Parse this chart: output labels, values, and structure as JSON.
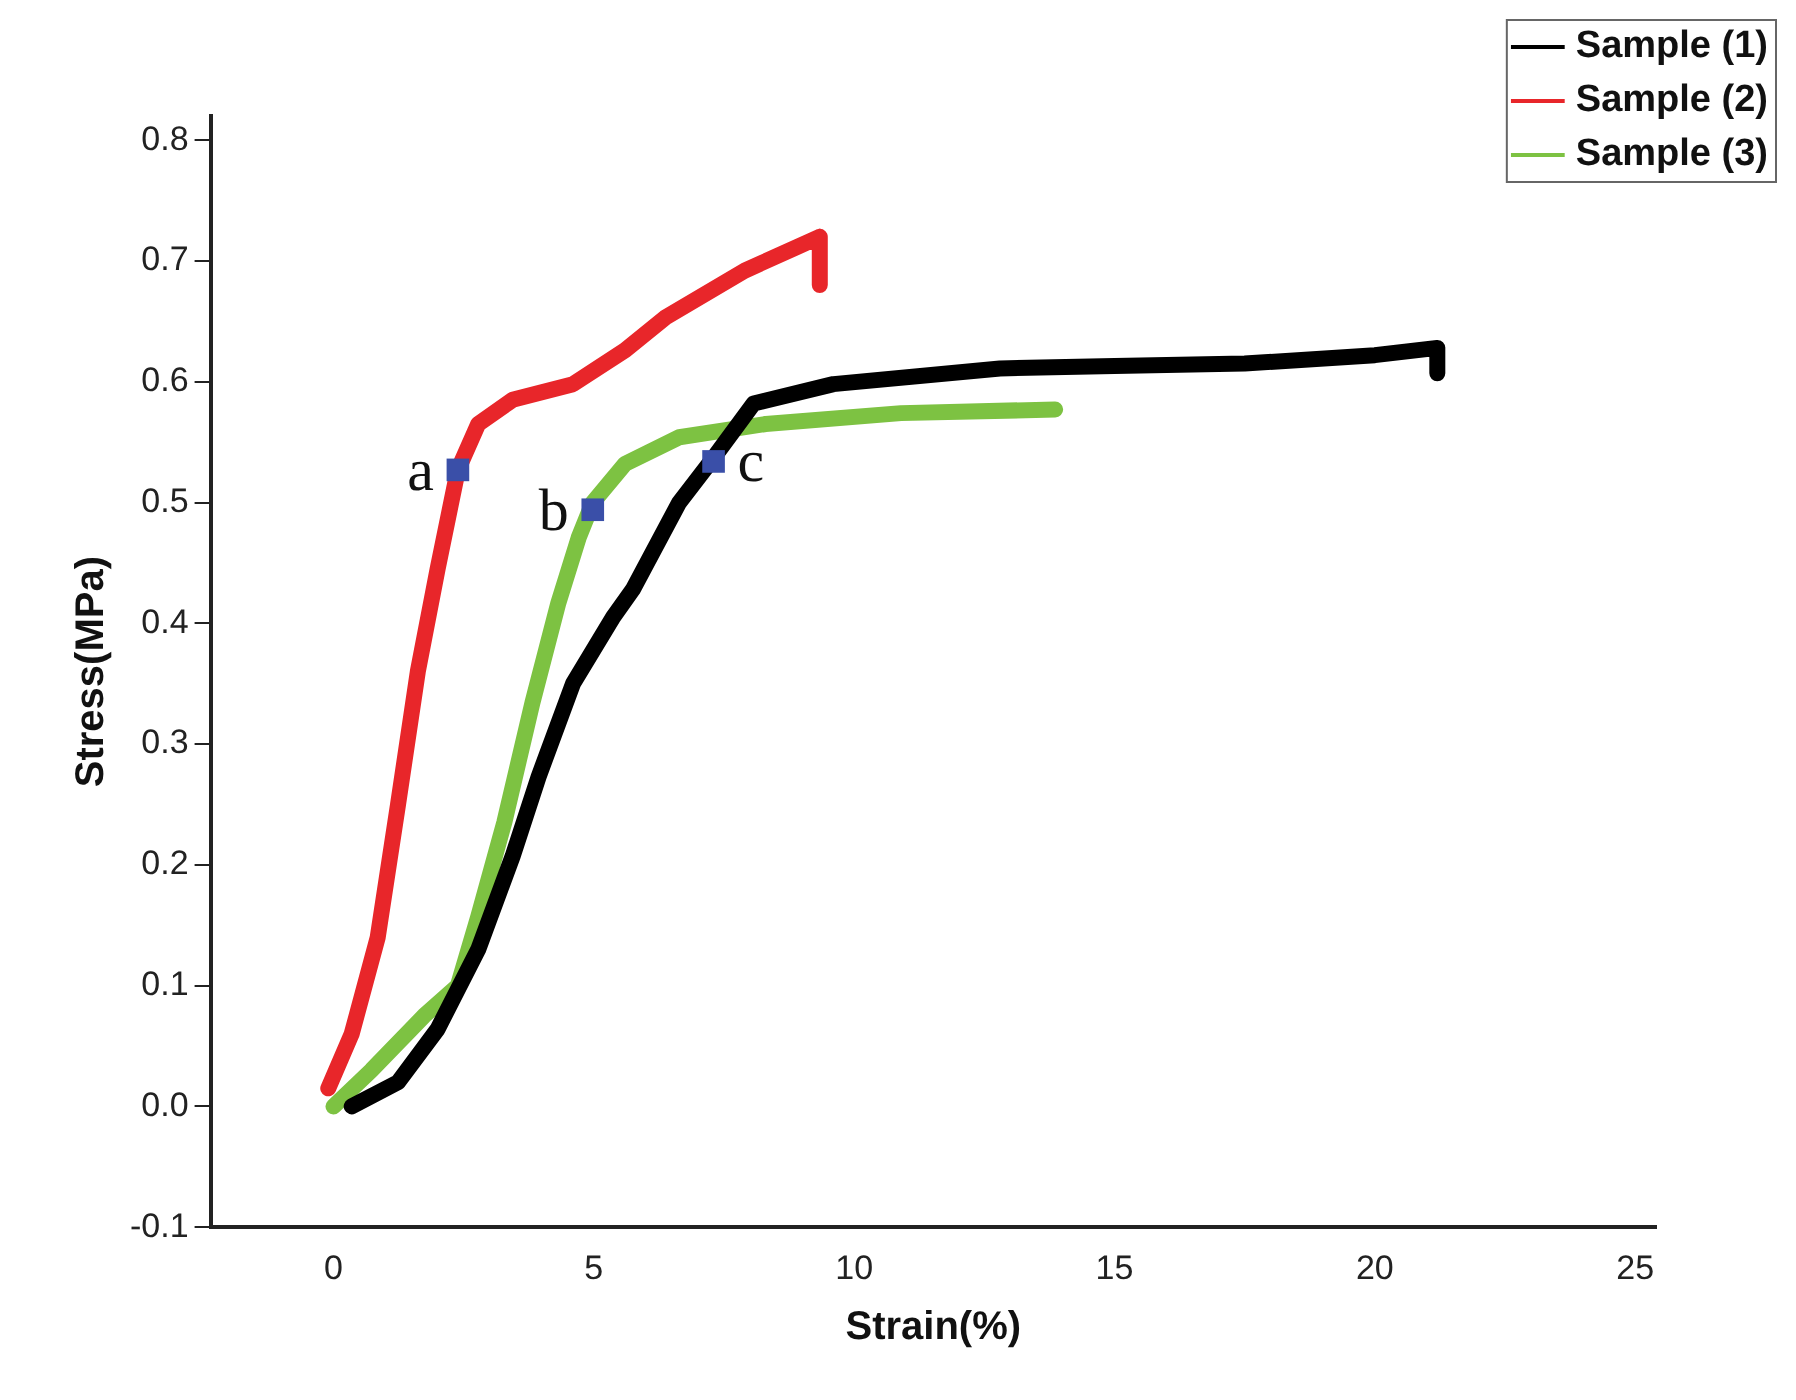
{
  "chart_data": {
    "type": "line",
    "xlabel": "Strain(%)",
    "ylabel": "Stress(MPa)",
    "xlim": [
      -2.36,
      25.4
    ],
    "ylim": [
      -0.1,
      0.82
    ],
    "xticks": [
      0,
      5,
      10,
      15,
      20,
      25
    ],
    "yticks": [
      -0.1,
      {
        "value": 0,
        "label": "0.0"
      },
      0.1,
      0.2,
      0.3,
      0.4,
      0.5,
      0.6,
      0.7,
      0.8
    ],
    "grid": false,
    "legend": "top right",
    "marker": "none",
    "line_style": "solid",
    "series": [
      {
        "name": "Sample (1)",
        "color": "#000000",
        "x": [
          0.35,
          1.24,
          2.0,
          2.78,
          3.44,
          3.94,
          4.6,
          5.37,
          5.75,
          6.64,
          7.3,
          8.07,
          9.6,
          12.8,
          15,
          17.5,
          20,
          21.2,
          21.2
        ],
        "values": [
          0,
          0.02,
          0.064,
          0.13,
          0.207,
          0.273,
          0.35,
          0.405,
          0.428,
          0.5,
          0.537,
          0.582,
          0.598,
          0.611,
          0.613,
          0.615,
          0.622,
          0.628,
          0.607
        ]
      },
      {
        "name": "Sample (2)",
        "color": "#e8262a",
        "x": [
          -0.1,
          0.35,
          0.85,
          1.24,
          1.62,
          2.0,
          2.39,
          2.78,
          3.44,
          4.6,
          5.6,
          6.37,
          7.9,
          9.34,
          9.34
        ],
        "values": [
          0.015,
          0.06,
          0.14,
          0.25,
          0.36,
          0.445,
          0.527,
          0.565,
          0.585,
          0.598,
          0.626,
          0.653,
          0.692,
          0.72,
          0.68
        ]
      },
      {
        "name": "Sample (3)",
        "color": "#7dc242",
        "x": [
          0,
          0.73,
          1.74,
          2.39,
          2.78,
          3.28,
          3.82,
          4.32,
          4.71,
          4.98,
          5.6,
          6.64,
          8.3,
          10.9,
          13.86
        ],
        "values": [
          0,
          0.03,
          0.075,
          0.1,
          0.157,
          0.235,
          0.334,
          0.417,
          0.471,
          0.5,
          0.532,
          0.554,
          0.565,
          0.574,
          0.577
        ]
      },
      {
        "type": "scatter",
        "color": "#3a4fa8",
        "marker": "square",
        "x": [
          2.39,
          4.98,
          7.3
        ],
        "values": [
          0.527,
          0.494,
          0.534
        ]
      }
    ],
    "annotations": [
      {
        "text": "a",
        "x": 2.39,
        "y": 0.527
      },
      {
        "text": "b",
        "x": 4.98,
        "y": 0.494
      },
      {
        "text": "c",
        "x": 7.3,
        "y": 0.534
      }
    ]
  }
}
